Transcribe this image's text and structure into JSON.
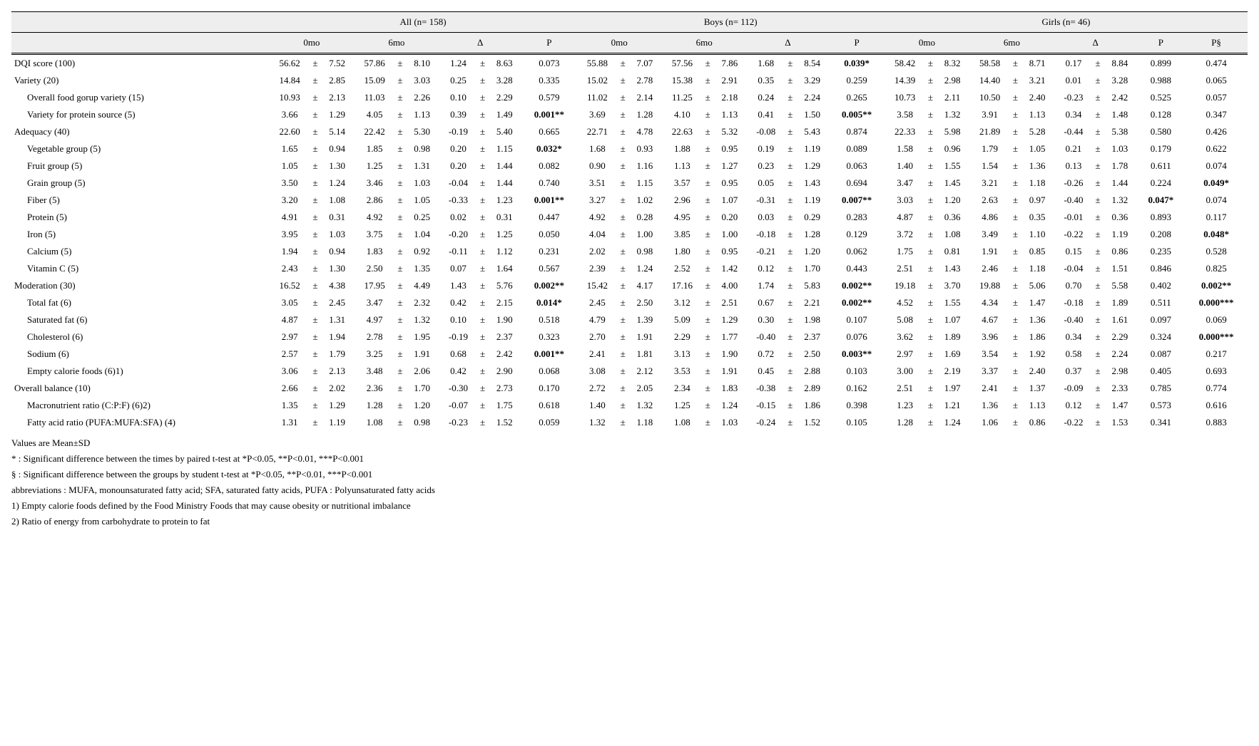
{
  "groupHeaders": {
    "all": "All (n= 158)",
    "boys": "Boys (n= 112)",
    "girls": "Girls (n= 46)"
  },
  "subHeaders": {
    "m0": "0mo",
    "m6": "6mo",
    "delta": "Δ",
    "p": "P",
    "pSect": "P§"
  },
  "rows": [
    {
      "label": "DQI score (100)",
      "indent": false,
      "all": {
        "m0m": "56.62",
        "m0s": "7.52",
        "m6m": "57.86",
        "m6s": "8.10",
        "dm": "1.24",
        "ds": "8.63",
        "p": "0.073",
        "pb": false
      },
      "boys": {
        "m0m": "55.88",
        "m0s": "7.07",
        "m6m": "57.56",
        "m6s": "7.86",
        "dm": "1.68",
        "ds": "8.54",
        "p": "0.039*",
        "pb": true
      },
      "girls": {
        "m0m": "58.42",
        "m0s": "8.32",
        "m6m": "58.58",
        "m6s": "8.71",
        "dm": "0.17",
        "ds": "8.84",
        "p": "0.899",
        "pb": false,
        "ps": "0.474",
        "psb": false
      }
    },
    {
      "label": "Variety (20)",
      "indent": false,
      "all": {
        "m0m": "14.84",
        "m0s": "2.85",
        "m6m": "15.09",
        "m6s": "3.03",
        "dm": "0.25",
        "ds": "3.28",
        "p": "0.335",
        "pb": false
      },
      "boys": {
        "m0m": "15.02",
        "m0s": "2.78",
        "m6m": "15.38",
        "m6s": "2.91",
        "dm": "0.35",
        "ds": "3.29",
        "p": "0.259",
        "pb": false
      },
      "girls": {
        "m0m": "14.39",
        "m0s": "2.98",
        "m6m": "14.40",
        "m6s": "3.21",
        "dm": "0.01",
        "ds": "3.28",
        "p": "0.988",
        "pb": false,
        "ps": "0.065",
        "psb": false
      }
    },
    {
      "label": "Overall food gorup variety (15)",
      "indent": true,
      "all": {
        "m0m": "10.93",
        "m0s": "2.13",
        "m6m": "11.03",
        "m6s": "2.26",
        "dm": "0.10",
        "ds": "2.29",
        "p": "0.579",
        "pb": false
      },
      "boys": {
        "m0m": "11.02",
        "m0s": "2.14",
        "m6m": "11.25",
        "m6s": "2.18",
        "dm": "0.24",
        "ds": "2.24",
        "p": "0.265",
        "pb": false
      },
      "girls": {
        "m0m": "10.73",
        "m0s": "2.11",
        "m6m": "10.50",
        "m6s": "2.40",
        "dm": "-0.23",
        "ds": "2.42",
        "p": "0.525",
        "pb": false,
        "ps": "0.057",
        "psb": false
      }
    },
    {
      "label": "Variety for protein source (5)",
      "indent": true,
      "all": {
        "m0m": "3.66",
        "m0s": "1.29",
        "m6m": "4.05",
        "m6s": "1.13",
        "dm": "0.39",
        "ds": "1.49",
        "p": "0.001**",
        "pb": true
      },
      "boys": {
        "m0m": "3.69",
        "m0s": "1.28",
        "m6m": "4.10",
        "m6s": "1.13",
        "dm": "0.41",
        "ds": "1.50",
        "p": "0.005**",
        "pb": true
      },
      "girls": {
        "m0m": "3.58",
        "m0s": "1.32",
        "m6m": "3.91",
        "m6s": "1.13",
        "dm": "0.34",
        "ds": "1.48",
        "p": "0.128",
        "pb": false,
        "ps": "0.347",
        "psb": false
      }
    },
    {
      "label": "Adequacy (40)",
      "indent": false,
      "all": {
        "m0m": "22.60",
        "m0s": "5.14",
        "m6m": "22.42",
        "m6s": "5.30",
        "dm": "-0.19",
        "ds": "5.40",
        "p": "0.665",
        "pb": false
      },
      "boys": {
        "m0m": "22.71",
        "m0s": "4.78",
        "m6m": "22.63",
        "m6s": "5.32",
        "dm": "-0.08",
        "ds": "5.43",
        "p": "0.874",
        "pb": false
      },
      "girls": {
        "m0m": "22.33",
        "m0s": "5.98",
        "m6m": "21.89",
        "m6s": "5.28",
        "dm": "-0.44",
        "ds": "5.38",
        "p": "0.580",
        "pb": false,
        "ps": "0.426",
        "psb": false
      }
    },
    {
      "label": "Vegetable group (5)",
      "indent": true,
      "all": {
        "m0m": "1.65",
        "m0s": "0.94",
        "m6m": "1.85",
        "m6s": "0.98",
        "dm": "0.20",
        "ds": "1.15",
        "p": "0.032*",
        "pb": true
      },
      "boys": {
        "m0m": "1.68",
        "m0s": "0.93",
        "m6m": "1.88",
        "m6s": "0.95",
        "dm": "0.19",
        "ds": "1.19",
        "p": "0.089",
        "pb": false
      },
      "girls": {
        "m0m": "1.58",
        "m0s": "0.96",
        "m6m": "1.79",
        "m6s": "1.05",
        "dm": "0.21",
        "ds": "1.03",
        "p": "0.179",
        "pb": false,
        "ps": "0.622",
        "psb": false
      }
    },
    {
      "label": "Fruit group (5)",
      "indent": true,
      "all": {
        "m0m": "1.05",
        "m0s": "1.30",
        "m6m": "1.25",
        "m6s": "1.31",
        "dm": "0.20",
        "ds": "1.44",
        "p": "0.082",
        "pb": false
      },
      "boys": {
        "m0m": "0.90",
        "m0s": "1.16",
        "m6m": "1.13",
        "m6s": "1.27",
        "dm": "0.23",
        "ds": "1.29",
        "p": "0.063",
        "pb": false
      },
      "girls": {
        "m0m": "1.40",
        "m0s": "1.55",
        "m6m": "1.54",
        "m6s": "1.36",
        "dm": "0.13",
        "ds": "1.78",
        "p": "0.611",
        "pb": false,
        "ps": "0.074",
        "psb": false
      }
    },
    {
      "label": "Grain group (5)",
      "indent": true,
      "all": {
        "m0m": "3.50",
        "m0s": "1.24",
        "m6m": "3.46",
        "m6s": "1.03",
        "dm": "-0.04",
        "ds": "1.44",
        "p": "0.740",
        "pb": false
      },
      "boys": {
        "m0m": "3.51",
        "m0s": "1.15",
        "m6m": "3.57",
        "m6s": "0.95",
        "dm": "0.05",
        "ds": "1.43",
        "p": "0.694",
        "pb": false
      },
      "girls": {
        "m0m": "3.47",
        "m0s": "1.45",
        "m6m": "3.21",
        "m6s": "1.18",
        "dm": "-0.26",
        "ds": "1.44",
        "p": "0.224",
        "pb": false,
        "ps": "0.049*",
        "psb": true
      }
    },
    {
      "label": "Fiber (5)",
      "indent": true,
      "all": {
        "m0m": "3.20",
        "m0s": "1.08",
        "m6m": "2.86",
        "m6s": "1.05",
        "dm": "-0.33",
        "ds": "1.23",
        "p": "0.001**",
        "pb": true
      },
      "boys": {
        "m0m": "3.27",
        "m0s": "1.02",
        "m6m": "2.96",
        "m6s": "1.07",
        "dm": "-0.31",
        "ds": "1.19",
        "p": "0.007**",
        "pb": true
      },
      "girls": {
        "m0m": "3.03",
        "m0s": "1.20",
        "m6m": "2.63",
        "m6s": "0.97",
        "dm": "-0.40",
        "ds": "1.32",
        "p": "0.047*",
        "pb": true,
        "ps": "0.074",
        "psb": false
      }
    },
    {
      "label": "Protein (5)",
      "indent": true,
      "all": {
        "m0m": "4.91",
        "m0s": "0.31",
        "m6m": "4.92",
        "m6s": "0.25",
        "dm": "0.02",
        "ds": "0.31",
        "p": "0.447",
        "pb": false
      },
      "boys": {
        "m0m": "4.92",
        "m0s": "0.28",
        "m6m": "4.95",
        "m6s": "0.20",
        "dm": "0.03",
        "ds": "0.29",
        "p": "0.283",
        "pb": false
      },
      "girls": {
        "m0m": "4.87",
        "m0s": "0.36",
        "m6m": "4.86",
        "m6s": "0.35",
        "dm": "-0.01",
        "ds": "0.36",
        "p": "0.893",
        "pb": false,
        "ps": "0.117",
        "psb": false
      }
    },
    {
      "label": "Iron (5)",
      "indent": true,
      "all": {
        "m0m": "3.95",
        "m0s": "1.03",
        "m6m": "3.75",
        "m6s": "1.04",
        "dm": "-0.20",
        "ds": "1.25",
        "p": "0.050",
        "pb": false
      },
      "boys": {
        "m0m": "4.04",
        "m0s": "1.00",
        "m6m": "3.85",
        "m6s": "1.00",
        "dm": "-0.18",
        "ds": "1.28",
        "p": "0.129",
        "pb": false
      },
      "girls": {
        "m0m": "3.72",
        "m0s": "1.08",
        "m6m": "3.49",
        "m6s": "1.10",
        "dm": "-0.22",
        "ds": "1.19",
        "p": "0.208",
        "pb": false,
        "ps": "0.048*",
        "psb": true
      }
    },
    {
      "label": "Calcium (5)",
      "indent": true,
      "all": {
        "m0m": "1.94",
        "m0s": "0.94",
        "m6m": "1.83",
        "m6s": "0.92",
        "dm": "-0.11",
        "ds": "1.12",
        "p": "0.231",
        "pb": false
      },
      "boys": {
        "m0m": "2.02",
        "m0s": "0.98",
        "m6m": "1.80",
        "m6s": "0.95",
        "dm": "-0.21",
        "ds": "1.20",
        "p": "0.062",
        "pb": false
      },
      "girls": {
        "m0m": "1.75",
        "m0s": "0.81",
        "m6m": "1.91",
        "m6s": "0.85",
        "dm": "0.15",
        "ds": "0.86",
        "p": "0.235",
        "pb": false,
        "ps": "0.528",
        "psb": false
      }
    },
    {
      "label": "Vitamin C (5)",
      "indent": true,
      "all": {
        "m0m": "2.43",
        "m0s": "1.30",
        "m6m": "2.50",
        "m6s": "1.35",
        "dm": "0.07",
        "ds": "1.64",
        "p": "0.567",
        "pb": false
      },
      "boys": {
        "m0m": "2.39",
        "m0s": "1.24",
        "m6m": "2.52",
        "m6s": "1.42",
        "dm": "0.12",
        "ds": "1.70",
        "p": "0.443",
        "pb": false
      },
      "girls": {
        "m0m": "2.51",
        "m0s": "1.43",
        "m6m": "2.46",
        "m6s": "1.18",
        "dm": "-0.04",
        "ds": "1.51",
        "p": "0.846",
        "pb": false,
        "ps": "0.825",
        "psb": false
      }
    },
    {
      "label": "Moderation (30)",
      "indent": false,
      "all": {
        "m0m": "16.52",
        "m0s": "4.38",
        "m6m": "17.95",
        "m6s": "4.49",
        "dm": "1.43",
        "ds": "5.76",
        "p": "0.002**",
        "pb": true
      },
      "boys": {
        "m0m": "15.42",
        "m0s": "4.17",
        "m6m": "17.16",
        "m6s": "4.00",
        "dm": "1.74",
        "ds": "5.83",
        "p": "0.002**",
        "pb": true
      },
      "girls": {
        "m0m": "19.18",
        "m0s": "3.70",
        "m6m": "19.88",
        "m6s": "5.06",
        "dm": "0.70",
        "ds": "5.58",
        "p": "0.402",
        "pb": false,
        "ps": "0.002**",
        "psb": true
      }
    },
    {
      "label": "Total fat (6)",
      "indent": true,
      "all": {
        "m0m": "3.05",
        "m0s": "2.45",
        "m6m": "3.47",
        "m6s": "2.32",
        "dm": "0.42",
        "ds": "2.15",
        "p": "0.014*",
        "pb": true
      },
      "boys": {
        "m0m": "2.45",
        "m0s": "2.50",
        "m6m": "3.12",
        "m6s": "2.51",
        "dm": "0.67",
        "ds": "2.21",
        "p": "0.002**",
        "pb": true
      },
      "girls": {
        "m0m": "4.52",
        "m0s": "1.55",
        "m6m": "4.34",
        "m6s": "1.47",
        "dm": "-0.18",
        "ds": "1.89",
        "p": "0.511",
        "pb": false,
        "ps": "0.000***",
        "psb": true
      }
    },
    {
      "label": "Saturated fat (6)",
      "indent": true,
      "all": {
        "m0m": "4.87",
        "m0s": "1.31",
        "m6m": "4.97",
        "m6s": "1.32",
        "dm": "0.10",
        "ds": "1.90",
        "p": "0.518",
        "pb": false
      },
      "boys": {
        "m0m": "4.79",
        "m0s": "1.39",
        "m6m": "5.09",
        "m6s": "1.29",
        "dm": "0.30",
        "ds": "1.98",
        "p": "0.107",
        "pb": false
      },
      "girls": {
        "m0m": "5.08",
        "m0s": "1.07",
        "m6m": "4.67",
        "m6s": "1.36",
        "dm": "-0.40",
        "ds": "1.61",
        "p": "0.097",
        "pb": false,
        "ps": "0.069",
        "psb": false
      }
    },
    {
      "label": "Cholesterol (6)",
      "indent": true,
      "all": {
        "m0m": "2.97",
        "m0s": "1.94",
        "m6m": "2.78",
        "m6s": "1.95",
        "dm": "-0.19",
        "ds": "2.37",
        "p": "0.323",
        "pb": false
      },
      "boys": {
        "m0m": "2.70",
        "m0s": "1.91",
        "m6m": "2.29",
        "m6s": "1.77",
        "dm": "-0.40",
        "ds": "2.37",
        "p": "0.076",
        "pb": false
      },
      "girls": {
        "m0m": "3.62",
        "m0s": "1.89",
        "m6m": "3.96",
        "m6s": "1.86",
        "dm": "0.34",
        "ds": "2.29",
        "p": "0.324",
        "pb": false,
        "ps": "0.000***",
        "psb": true
      }
    },
    {
      "label": "Sodium (6)",
      "indent": true,
      "all": {
        "m0m": "2.57",
        "m0s": "1.79",
        "m6m": "3.25",
        "m6s": "1.91",
        "dm": "0.68",
        "ds": "2.42",
        "p": "0.001**",
        "pb": true
      },
      "boys": {
        "m0m": "2.41",
        "m0s": "1.81",
        "m6m": "3.13",
        "m6s": "1.90",
        "dm": "0.72",
        "ds": "2.50",
        "p": "0.003**",
        "pb": true
      },
      "girls": {
        "m0m": "2.97",
        "m0s": "1.69",
        "m6m": "3.54",
        "m6s": "1.92",
        "dm": "0.58",
        "ds": "2.24",
        "p": "0.087",
        "pb": false,
        "ps": "0.217",
        "psb": false
      }
    },
    {
      "label": "Empty calorie foods (6)1)",
      "indent": true,
      "all": {
        "m0m": "3.06",
        "m0s": "2.13",
        "m6m": "3.48",
        "m6s": "2.06",
        "dm": "0.42",
        "ds": "2.90",
        "p": "0.068",
        "pb": false
      },
      "boys": {
        "m0m": "3.08",
        "m0s": "2.12",
        "m6m": "3.53",
        "m6s": "1.91",
        "dm": "0.45",
        "ds": "2.88",
        "p": "0.103",
        "pb": false
      },
      "girls": {
        "m0m": "3.00",
        "m0s": "2.19",
        "m6m": "3.37",
        "m6s": "2.40",
        "dm": "0.37",
        "ds": "2.98",
        "p": "0.405",
        "pb": false,
        "ps": "0.693",
        "psb": false
      }
    },
    {
      "label": "Overall balance (10)",
      "indent": false,
      "all": {
        "m0m": "2.66",
        "m0s": "2.02",
        "m6m": "2.36",
        "m6s": "1.70",
        "dm": "-0.30",
        "ds": "2.73",
        "p": "0.170",
        "pb": false
      },
      "boys": {
        "m0m": "2.72",
        "m0s": "2.05",
        "m6m": "2.34",
        "m6s": "1.83",
        "dm": "-0.38",
        "ds": "2.89",
        "p": "0.162",
        "pb": false
      },
      "girls": {
        "m0m": "2.51",
        "m0s": "1.97",
        "m6m": "2.41",
        "m6s": "1.37",
        "dm": "-0.09",
        "ds": "2.33",
        "p": "0.785",
        "pb": false,
        "ps": "0.774",
        "psb": false
      }
    },
    {
      "label": "Macronutrient ratio (C:P:F) (6)2)",
      "indent": true,
      "all": {
        "m0m": "1.35",
        "m0s": "1.29",
        "m6m": "1.28",
        "m6s": "1.20",
        "dm": "-0.07",
        "ds": "1.75",
        "p": "0.618",
        "pb": false
      },
      "boys": {
        "m0m": "1.40",
        "m0s": "1.32",
        "m6m": "1.25",
        "m6s": "1.24",
        "dm": "-0.15",
        "ds": "1.86",
        "p": "0.398",
        "pb": false
      },
      "girls": {
        "m0m": "1.23",
        "m0s": "1.21",
        "m6m": "1.36",
        "m6s": "1.13",
        "dm": "0.12",
        "ds": "1.47",
        "p": "0.573",
        "pb": false,
        "ps": "0.616",
        "psb": false
      }
    },
    {
      "label": "Fatty acid ratio (PUFA:MUFA:SFA) (4)",
      "indent": true,
      "all": {
        "m0m": "1.31",
        "m0s": "1.19",
        "m6m": "1.08",
        "m6s": "0.98",
        "dm": "-0.23",
        "ds": "1.52",
        "p": "0.059",
        "pb": false
      },
      "boys": {
        "m0m": "1.32",
        "m0s": "1.18",
        "m6m": "1.08",
        "m6s": "1.03",
        "dm": "-0.24",
        "ds": "1.52",
        "p": "0.105",
        "pb": false
      },
      "girls": {
        "m0m": "1.28",
        "m0s": "1.24",
        "m6m": "1.06",
        "m6s": "0.86",
        "dm": "-0.22",
        "ds": "1.53",
        "p": "0.341",
        "pb": false,
        "ps": "0.883",
        "psb": false
      }
    }
  ],
  "footnotes": [
    "Values are Mean±SD",
    "* : Significant difference between the times by paired t-test at *P<0.05, **P<0.01, ***P<0.001",
    "§ : Significant difference between the groups by student t-test at *P<0.05, **P<0.01, ***P<0.001",
    "abbreviations : MUFA, monounsaturated fatty acid; SFA, saturated fatty acids, PUFA : Polyunsaturated fatty acids",
    "1) Empty calorie foods defined by the Food Ministry Foods that may cause obesity or nutritional imbalance",
    "2) Ratio of energy from carbohydrate to protein to fat"
  ]
}
